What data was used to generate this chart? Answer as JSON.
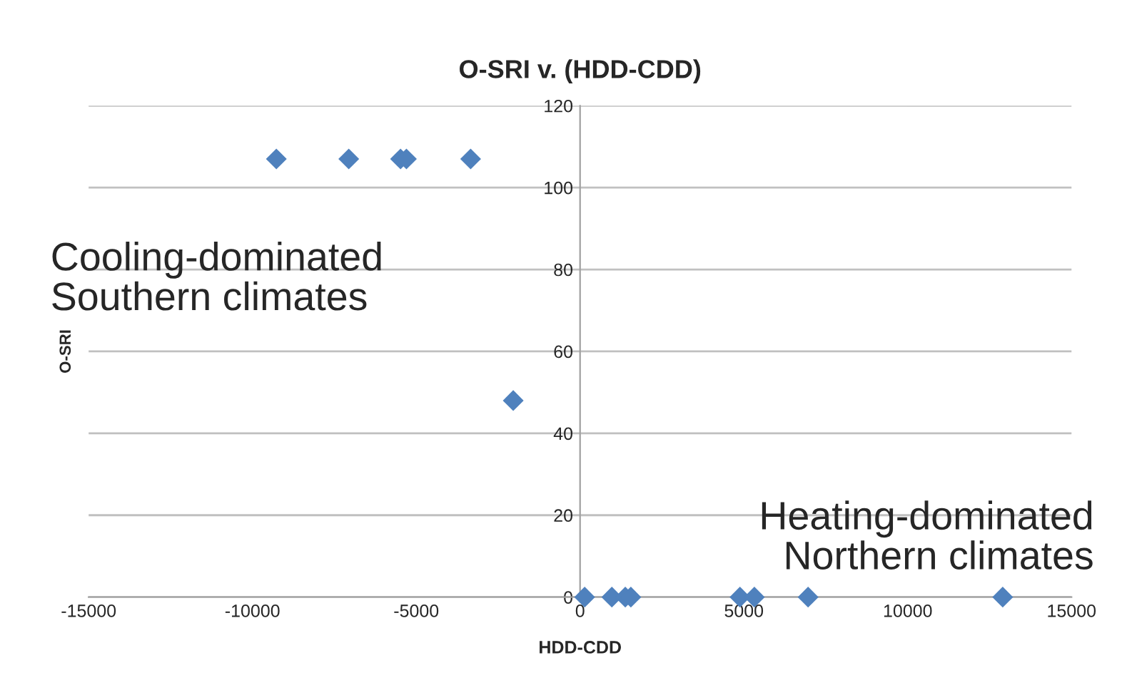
{
  "chart_data": {
    "type": "scatter",
    "title": "O-SRI v. (HDD-CDD)",
    "xlabel": "HDD-CDD",
    "ylabel": "O-SRI",
    "series": [
      {
        "color": "#4f81bd",
        "x": [
          -9270,
          -7060,
          -5480,
          -5300,
          -3340,
          -2040,
          140,
          970,
          1380,
          1550,
          4880,
          5320,
          6960,
          12900
        ],
        "values": [
          107,
          107,
          107,
          107,
          107,
          48,
          0,
          0,
          0,
          0,
          0,
          0,
          0,
          0
        ]
      }
    ],
    "xlim": [
      -15000,
      15000
    ],
    "xticks": [
      -15000,
      -10000,
      -5000,
      0,
      5000,
      10000,
      15000
    ],
    "ylim": [
      0,
      120
    ],
    "yticks": [
      0,
      20,
      40,
      60,
      80,
      100,
      120
    ],
    "grid": "y",
    "marker": "diamond",
    "legend": false,
    "annotations": [
      "Cooling-dominated\nSouthern climates",
      "Heating-dominated\nNorthern climates"
    ]
  }
}
